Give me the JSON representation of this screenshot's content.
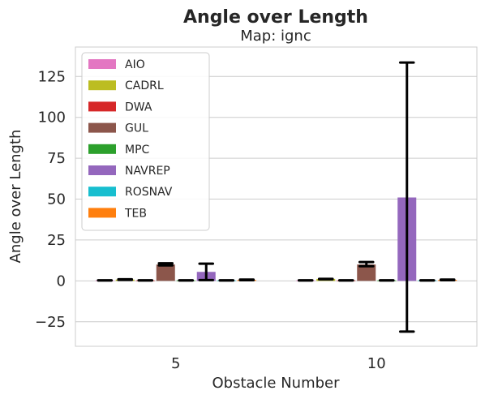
{
  "chart_data": {
    "type": "bar",
    "title": "Angle over Length",
    "subtitle": "Map: ignc",
    "xlabel": "Obstacle Number",
    "ylabel": "Angle over Length",
    "categories": [
      "5",
      "10"
    ],
    "ylim": [
      -40,
      143
    ],
    "yticks": [
      -25,
      0,
      25,
      50,
      75,
      100,
      125
    ],
    "ytick_labels": [
      "−25",
      "0",
      "25",
      "50",
      "75",
      "100",
      "125"
    ],
    "grid": true,
    "legend_position": "upper-left",
    "series": [
      {
        "name": "AIO",
        "color": "#e377c2",
        "values": [
          0.3,
          0.3
        ],
        "err_low": [
          0.3,
          0.3
        ],
        "err_high": [
          0.3,
          0.3
        ]
      },
      {
        "name": "CADRL",
        "color": "#bcbd22",
        "values": [
          0.8,
          1.2
        ],
        "err_low": [
          0.6,
          1.0
        ],
        "err_high": [
          1.0,
          1.2
        ]
      },
      {
        "name": "DWA",
        "color": "#d62728",
        "values": [
          0.3,
          0.3
        ],
        "err_low": [
          0.3,
          0.3
        ],
        "err_high": [
          0.3,
          0.3
        ]
      },
      {
        "name": "GUL",
        "color": "#8c564b",
        "values": [
          10.0,
          10.0
        ],
        "err_low": [
          9.5,
          9.0
        ],
        "err_high": [
          10.8,
          11.5
        ]
      },
      {
        "name": "MPC",
        "color": "#2ca02c",
        "values": [
          0.3,
          0.3
        ],
        "err_low": [
          0.3,
          0.3
        ],
        "err_high": [
          0.3,
          0.3
        ]
      },
      {
        "name": "NAVREP",
        "color": "#9467bd",
        "values": [
          5.5,
          51.0
        ],
        "err_low": [
          0.5,
          -31.0
        ],
        "err_high": [
          10.5,
          133.5
        ]
      },
      {
        "name": "ROSNAV",
        "color": "#17becf",
        "values": [
          0.3,
          0.3
        ],
        "err_low": [
          0.3,
          0.3
        ],
        "err_high": [
          0.3,
          0.3
        ]
      },
      {
        "name": "TEB",
        "color": "#ff7f0e",
        "values": [
          0.6,
          0.6
        ],
        "err_low": [
          0.4,
          0.4
        ],
        "err_high": [
          0.8,
          0.8
        ]
      }
    ]
  }
}
